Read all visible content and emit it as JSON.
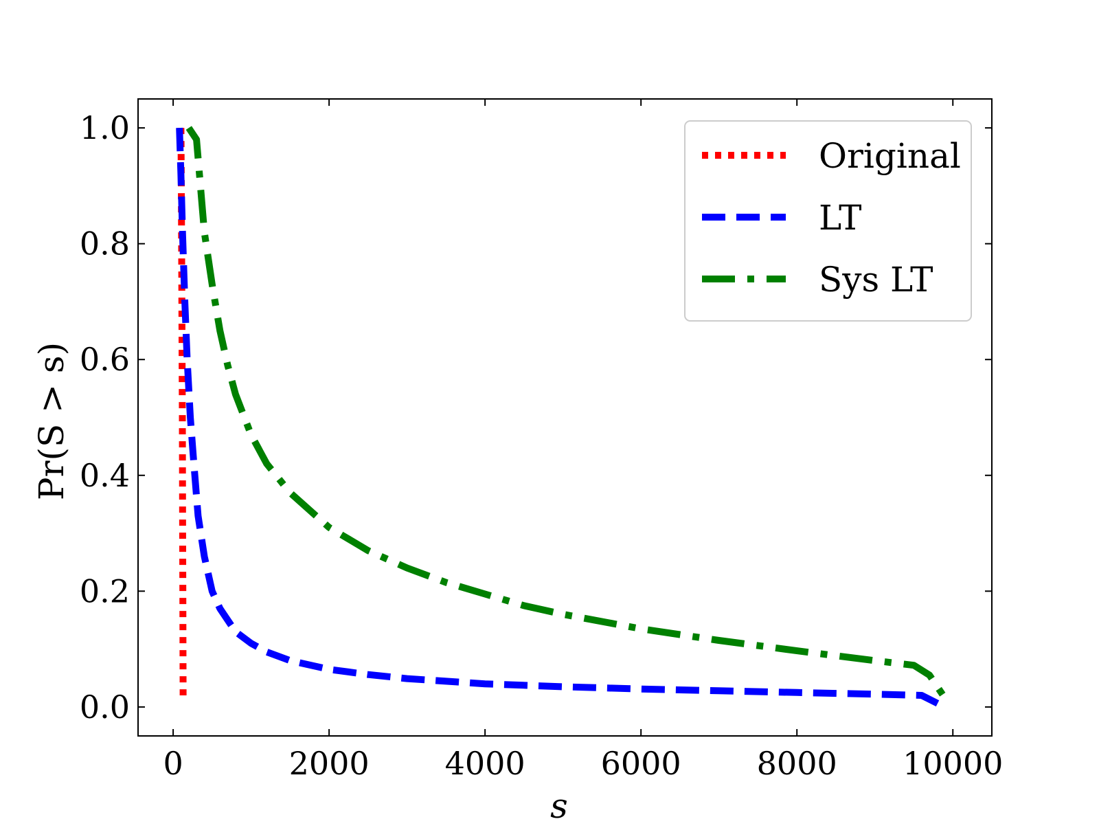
{
  "chart_data": {
    "type": "line",
    "title": "",
    "xlabel": "s",
    "ylabel": "Pr(S > s)",
    "xlim": [
      -450,
      10500
    ],
    "ylim": [
      -0.05,
      1.05
    ],
    "xticks": [
      0,
      2000,
      4000,
      6000,
      8000,
      10000
    ],
    "xtick_labels": [
      "0",
      "2000",
      "4000",
      "6000",
      "8000",
      "10000"
    ],
    "yticks": [
      0.0,
      0.2,
      0.4,
      0.6,
      0.8,
      1.0
    ],
    "ytick_labels": [
      "0.0",
      "0.2",
      "0.4",
      "0.6",
      "0.8",
      "1.0"
    ],
    "grid": false,
    "legend_position": "top-right",
    "series": [
      {
        "name": "Original",
        "color": "#ff0000",
        "style": "dotted",
        "points": [
          [
            100,
            1.0
          ],
          [
            105,
            0.9
          ],
          [
            110,
            0.75
          ],
          [
            115,
            0.6
          ],
          [
            118,
            0.5
          ],
          [
            120,
            0.4
          ],
          [
            122,
            0.3
          ],
          [
            124,
            0.2
          ],
          [
            126,
            0.1
          ],
          [
            128,
            0.02
          ]
        ]
      },
      {
        "name": "LT",
        "color": "#0000ff",
        "style": "dashed",
        "points": [
          [
            80,
            1.0
          ],
          [
            100,
            0.92
          ],
          [
            120,
            0.82
          ],
          [
            150,
            0.7
          ],
          [
            180,
            0.6
          ],
          [
            220,
            0.5
          ],
          [
            260,
            0.43
          ],
          [
            320,
            0.33
          ],
          [
            400,
            0.26
          ],
          [
            500,
            0.2
          ],
          [
            600,
            0.17
          ],
          [
            800,
            0.13
          ],
          [
            1000,
            0.11
          ],
          [
            1200,
            0.095
          ],
          [
            1500,
            0.08
          ],
          [
            2000,
            0.065
          ],
          [
            2500,
            0.056
          ],
          [
            3000,
            0.049
          ],
          [
            4000,
            0.04
          ],
          [
            5000,
            0.035
          ],
          [
            6000,
            0.031
          ],
          [
            7000,
            0.028
          ],
          [
            8000,
            0.025
          ],
          [
            9000,
            0.022
          ],
          [
            9600,
            0.02
          ],
          [
            9850,
            0.003
          ]
        ]
      },
      {
        "name": "Sys LT",
        "color": "#008000",
        "style": "dashdot",
        "points": [
          [
            200,
            1.0
          ],
          [
            300,
            0.98
          ],
          [
            350,
            0.9
          ],
          [
            400,
            0.82
          ],
          [
            500,
            0.73
          ],
          [
            600,
            0.65
          ],
          [
            700,
            0.59
          ],
          [
            800,
            0.54
          ],
          [
            1000,
            0.47
          ],
          [
            1200,
            0.42
          ],
          [
            1500,
            0.37
          ],
          [
            2000,
            0.31
          ],
          [
            2500,
            0.27
          ],
          [
            3000,
            0.24
          ],
          [
            3500,
            0.215
          ],
          [
            4000,
            0.195
          ],
          [
            4500,
            0.175
          ],
          [
            5000,
            0.16
          ],
          [
            6000,
            0.135
          ],
          [
            7000,
            0.115
          ],
          [
            8000,
            0.097
          ],
          [
            9000,
            0.08
          ],
          [
            9500,
            0.072
          ],
          [
            9700,
            0.055
          ],
          [
            9900,
            0.015
          ]
        ]
      }
    ]
  }
}
